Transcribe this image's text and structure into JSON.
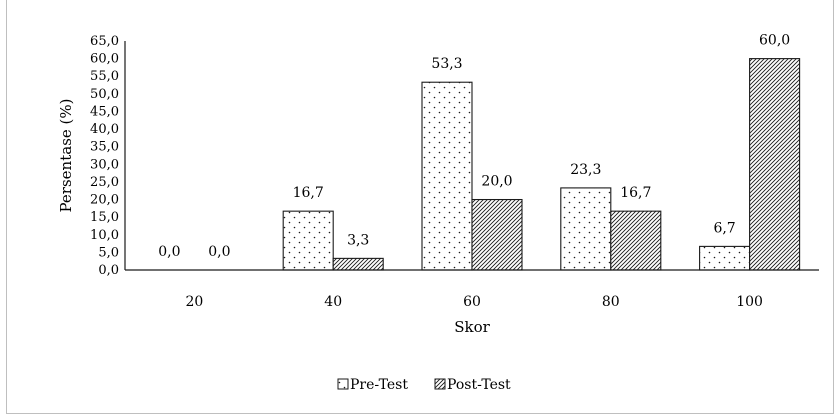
{
  "chart_data": {
    "type": "bar",
    "categories": [
      "20",
      "40",
      "60",
      "80",
      "100"
    ],
    "series": [
      {
        "name": "Pre-Test",
        "values": [
          0.0,
          16.7,
          53.3,
          23.3,
          6.7
        ],
        "labels": [
          "0,0",
          "16,7",
          "53,3",
          "23,3",
          "6,7"
        ]
      },
      {
        "name": "Post-Test",
        "values": [
          0.0,
          3.3,
          20.0,
          16.7,
          60.0
        ],
        "labels": [
          "0,0",
          "3,3",
          "20,0",
          "16,7",
          "60,0"
        ]
      }
    ],
    "xlabel": "Skor",
    "ylabel": "Persentase (%)",
    "ylim": [
      0,
      65
    ],
    "yticks": [
      "0,0",
      "5,0",
      "10,0",
      "15,0",
      "20,0",
      "25,0",
      "30,0",
      "35,0",
      "40,0",
      "45,0",
      "50,0",
      "55,0",
      "60,0",
      "65,0"
    ],
    "ytick_step": 5,
    "grid": false,
    "legend_position": "bottom-center",
    "colors": {
      "bar_fill": "#ffffff",
      "bar_stroke": "#1a1a1a",
      "pattern_ink": "#1a1a1a",
      "axis": "#1a1a1a"
    }
  }
}
